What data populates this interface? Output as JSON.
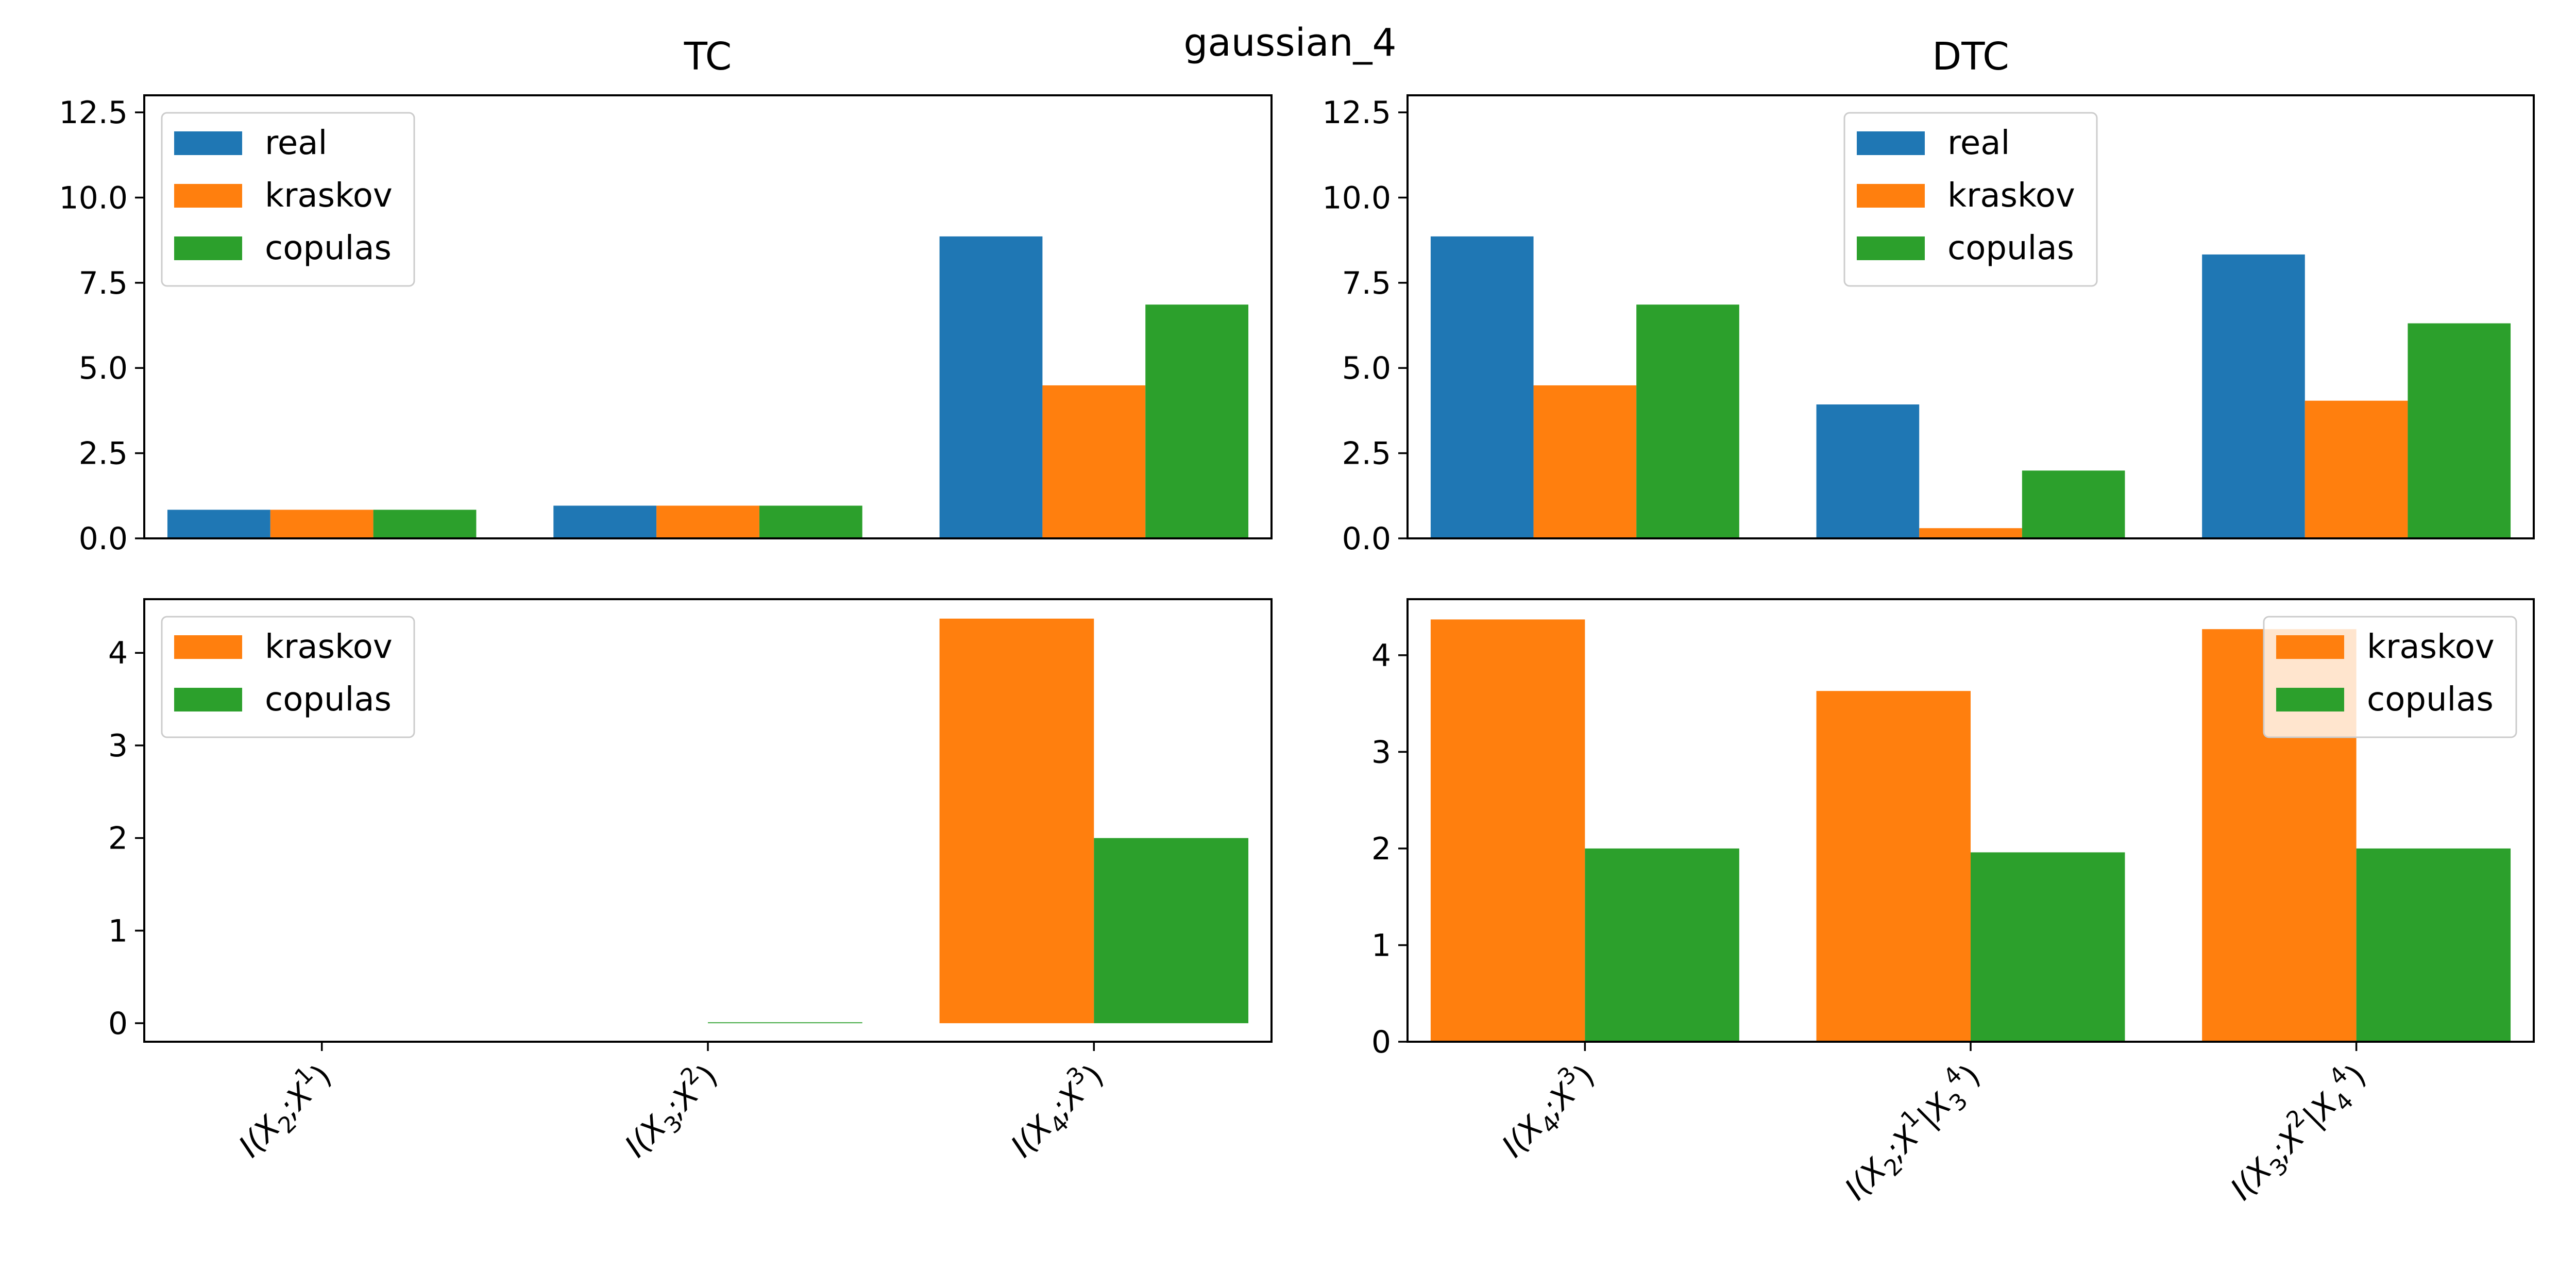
{
  "figure": {
    "title": "gaussian_4"
  },
  "colors": {
    "real": "#1f77b4",
    "kraskov": "#ff7f0e",
    "copulas": "#2ca02c"
  },
  "chart_data": [
    {
      "id": "tc_top",
      "type": "bar",
      "title": "TC",
      "categories": [
        "I(X2;X1)",
        "I(X3;X2)",
        "I(X4;X3)"
      ],
      "series": [
        {
          "name": "real",
          "values": [
            0.84,
            0.96,
            8.86
          ]
        },
        {
          "name": "kraskov",
          "values": [
            0.84,
            0.96,
            4.49
          ]
        },
        {
          "name": "copulas",
          "values": [
            0.84,
            0.96,
            6.86
          ]
        }
      ],
      "ylim": [
        0,
        13.0
      ],
      "yticks": [
        "0.0",
        "2.5",
        "5.0",
        "7.5",
        "10.0",
        "12.5"
      ],
      "legend": "upper left",
      "xlabel": "",
      "ylabel": ""
    },
    {
      "id": "dtc_top",
      "type": "bar",
      "title": "DTC",
      "categories": [
        "I(X4;X3)",
        "I(X2;X1|X34)",
        "I(X3;X2|X44)"
      ],
      "series": [
        {
          "name": "real",
          "values": [
            8.86,
            3.93,
            8.33
          ]
        },
        {
          "name": "kraskov",
          "values": [
            4.49,
            0.3,
            4.04
          ]
        },
        {
          "name": "copulas",
          "values": [
            6.86,
            1.99,
            6.31
          ]
        }
      ],
      "ylim": [
        0,
        13.0
      ],
      "yticks": [
        "0.0",
        "2.5",
        "5.0",
        "7.5",
        "10.0",
        "12.5"
      ],
      "legend": "upper center",
      "xlabel": "",
      "ylabel": ""
    },
    {
      "id": "tc_bottom",
      "type": "bar",
      "categories": [
        "I(X2;X1)",
        "I(X3;X2)",
        "I(X4;X3)"
      ],
      "series": [
        {
          "name": "kraskov",
          "values": [
            0.0,
            0.0,
            4.37
          ]
        },
        {
          "name": "copulas",
          "values": [
            0.0,
            0.01,
            2.0
          ]
        }
      ],
      "ylim": [
        -0.2,
        4.58
      ],
      "yticks": [
        "0",
        "1",
        "2",
        "3",
        "4"
      ],
      "legend": "upper left",
      "xticklabels": [
        "I(X_2;X^1)",
        "I(X_3;X^2)",
        "I(X_4;X^3)"
      ],
      "xlabel": "",
      "ylabel": ""
    },
    {
      "id": "dtc_bottom",
      "type": "bar",
      "categories": [
        "I(X4;X3)",
        "I(X2;X1|X34)",
        "I(X3;X2|X44)"
      ],
      "series": [
        {
          "name": "kraskov",
          "values": [
            4.37,
            3.63,
            4.27
          ]
        },
        {
          "name": "copulas",
          "values": [
            2.0,
            1.96,
            2.0
          ]
        }
      ],
      "ylim": [
        0,
        4.58
      ],
      "yticks": [
        "0",
        "1",
        "2",
        "3",
        "4"
      ],
      "legend": "upper right",
      "xticklabels": [
        "I(X_4;X^3)",
        "I(X_2;X^1|X_3^4)",
        "I(X_3;X^2|X_4^4)"
      ],
      "xlabel": "",
      "ylabel": ""
    }
  ]
}
